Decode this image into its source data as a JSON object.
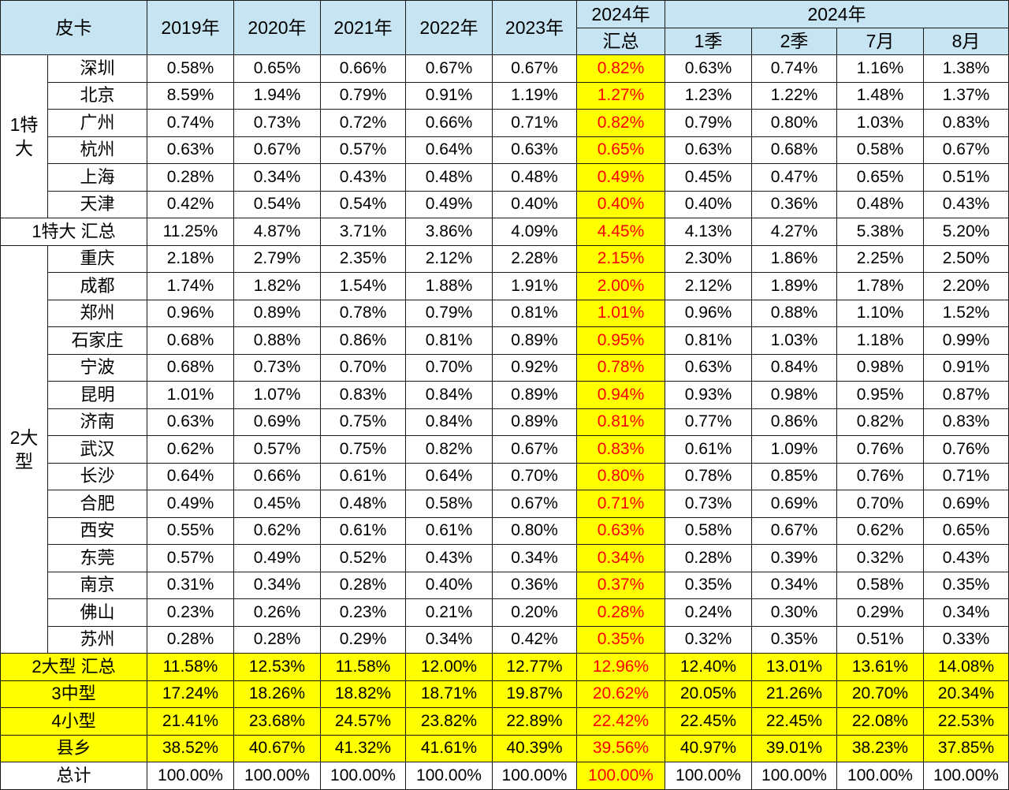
{
  "header": {
    "corner": "皮卡",
    "years": [
      "2019年",
      "2020年",
      "2021年",
      "2022年",
      "2023年"
    ],
    "summary_year": "2024年",
    "summary_label": "汇总",
    "group_label": "2024年",
    "subs": [
      "1季",
      "2季",
      "7月",
      "8月"
    ]
  },
  "tier1": {
    "label_line1": "1特",
    "label_line2": "大",
    "rows": [
      {
        "city": "深圳",
        "values": [
          "0.58%",
          "0.65%",
          "0.66%",
          "0.67%",
          "0.67%",
          "0.82%",
          "0.63%",
          "0.74%",
          "1.16%",
          "1.38%"
        ]
      },
      {
        "city": "北京",
        "values": [
          "8.59%",
          "1.94%",
          "0.79%",
          "0.91%",
          "1.19%",
          "1.27%",
          "1.23%",
          "1.22%",
          "1.48%",
          "1.37%"
        ]
      },
      {
        "city": "广州",
        "values": [
          "0.74%",
          "0.73%",
          "0.72%",
          "0.66%",
          "0.71%",
          "0.82%",
          "0.79%",
          "0.80%",
          "1.03%",
          "0.83%"
        ]
      },
      {
        "city": "杭州",
        "values": [
          "0.63%",
          "0.67%",
          "0.57%",
          "0.64%",
          "0.63%",
          "0.65%",
          "0.63%",
          "0.68%",
          "0.58%",
          "0.67%"
        ]
      },
      {
        "city": "上海",
        "values": [
          "0.28%",
          "0.34%",
          "0.43%",
          "0.48%",
          "0.48%",
          "0.49%",
          "0.45%",
          "0.47%",
          "0.65%",
          "0.51%"
        ]
      },
      {
        "city": "天津",
        "values": [
          "0.42%",
          "0.54%",
          "0.54%",
          "0.49%",
          "0.40%",
          "0.40%",
          "0.40%",
          "0.36%",
          "0.48%",
          "0.43%"
        ]
      }
    ],
    "summary": {
      "label": "1特大 汇总",
      "values": [
        "11.25%",
        "4.87%",
        "3.71%",
        "3.86%",
        "4.09%",
        "4.45%",
        "4.13%",
        "4.27%",
        "5.38%",
        "5.20%"
      ]
    }
  },
  "tier2": {
    "label_line1": "2大",
    "label_line2": "型",
    "rows": [
      {
        "city": "重庆",
        "values": [
          "2.18%",
          "2.79%",
          "2.35%",
          "2.12%",
          "2.28%",
          "2.15%",
          "2.30%",
          "1.86%",
          "2.25%",
          "2.50%"
        ]
      },
      {
        "city": "成都",
        "values": [
          "1.74%",
          "1.82%",
          "1.54%",
          "1.88%",
          "1.91%",
          "2.00%",
          "2.12%",
          "1.89%",
          "1.78%",
          "2.20%"
        ]
      },
      {
        "city": "郑州",
        "values": [
          "0.96%",
          "0.89%",
          "0.78%",
          "0.79%",
          "0.81%",
          "1.01%",
          "0.96%",
          "0.88%",
          "1.10%",
          "1.52%"
        ]
      },
      {
        "city": "石家庄",
        "values": [
          "0.68%",
          "0.88%",
          "0.86%",
          "0.81%",
          "0.89%",
          "0.95%",
          "0.81%",
          "1.03%",
          "1.18%",
          "0.99%"
        ]
      },
      {
        "city": "宁波",
        "values": [
          "0.68%",
          "0.73%",
          "0.70%",
          "0.70%",
          "0.92%",
          "0.78%",
          "0.63%",
          "0.84%",
          "0.98%",
          "0.91%"
        ]
      },
      {
        "city": "昆明",
        "values": [
          "1.01%",
          "1.07%",
          "0.83%",
          "0.84%",
          "0.89%",
          "0.94%",
          "0.93%",
          "0.98%",
          "0.95%",
          "0.87%"
        ]
      },
      {
        "city": "济南",
        "values": [
          "0.63%",
          "0.69%",
          "0.75%",
          "0.84%",
          "0.89%",
          "0.81%",
          "0.77%",
          "0.86%",
          "0.82%",
          "0.83%"
        ]
      },
      {
        "city": "武汉",
        "values": [
          "0.62%",
          "0.57%",
          "0.75%",
          "0.82%",
          "0.67%",
          "0.83%",
          "0.61%",
          "1.09%",
          "0.76%",
          "0.76%"
        ]
      },
      {
        "city": "长沙",
        "values": [
          "0.64%",
          "0.66%",
          "0.61%",
          "0.64%",
          "0.70%",
          "0.80%",
          "0.78%",
          "0.85%",
          "0.76%",
          "0.71%"
        ]
      },
      {
        "city": "合肥",
        "values": [
          "0.49%",
          "0.45%",
          "0.48%",
          "0.58%",
          "0.67%",
          "0.71%",
          "0.73%",
          "0.69%",
          "0.70%",
          "0.69%"
        ]
      },
      {
        "city": "西安",
        "values": [
          "0.55%",
          "0.62%",
          "0.61%",
          "0.61%",
          "0.80%",
          "0.63%",
          "0.58%",
          "0.67%",
          "0.62%",
          "0.65%"
        ]
      },
      {
        "city": "东莞",
        "values": [
          "0.57%",
          "0.49%",
          "0.52%",
          "0.43%",
          "0.34%",
          "0.34%",
          "0.28%",
          "0.39%",
          "0.32%",
          "0.43%"
        ]
      },
      {
        "city": "南京",
        "values": [
          "0.31%",
          "0.34%",
          "0.28%",
          "0.40%",
          "0.36%",
          "0.37%",
          "0.35%",
          "0.34%",
          "0.58%",
          "0.35%"
        ]
      },
      {
        "city": "佛山",
        "values": [
          "0.23%",
          "0.26%",
          "0.23%",
          "0.21%",
          "0.20%",
          "0.28%",
          "0.24%",
          "0.30%",
          "0.29%",
          "0.34%"
        ]
      },
      {
        "city": "苏州",
        "values": [
          "0.28%",
          "0.28%",
          "0.29%",
          "0.34%",
          "0.42%",
          "0.35%",
          "0.32%",
          "0.35%",
          "0.51%",
          "0.33%"
        ]
      }
    ]
  },
  "totals": [
    {
      "label": "2大型 汇总",
      "values": [
        "11.58%",
        "12.53%",
        "11.58%",
        "12.00%",
        "12.77%",
        "12.96%",
        "12.40%",
        "13.01%",
        "13.61%",
        "14.08%"
      ],
      "highlight": true
    },
    {
      "label": "3中型",
      "values": [
        "17.24%",
        "18.26%",
        "18.82%",
        "18.71%",
        "19.87%",
        "20.62%",
        "20.05%",
        "21.26%",
        "20.70%",
        "20.34%"
      ],
      "highlight": true
    },
    {
      "label": "4小型",
      "values": [
        "21.41%",
        "23.68%",
        "24.57%",
        "23.82%",
        "22.89%",
        "22.42%",
        "22.45%",
        "22.45%",
        "22.08%",
        "22.53%"
      ],
      "highlight": true
    },
    {
      "label": "县乡",
      "values": [
        "38.52%",
        "40.67%",
        "41.32%",
        "41.61%",
        "40.39%",
        "39.56%",
        "40.97%",
        "39.01%",
        "38.23%",
        "37.85%"
      ],
      "highlight": true
    },
    {
      "label": "总计",
      "values": [
        "100.00%",
        "100.00%",
        "100.00%",
        "100.00%",
        "100.00%",
        "100.00%",
        "100.00%",
        "100.00%",
        "100.00%",
        "100.00%"
      ],
      "highlight": false
    }
  ],
  "colors": {
    "header_bg": "#c7e4f2",
    "highlight_bg": "#ffff00",
    "highlight_text": "#ff0000",
    "border": "#1a1a1a"
  }
}
